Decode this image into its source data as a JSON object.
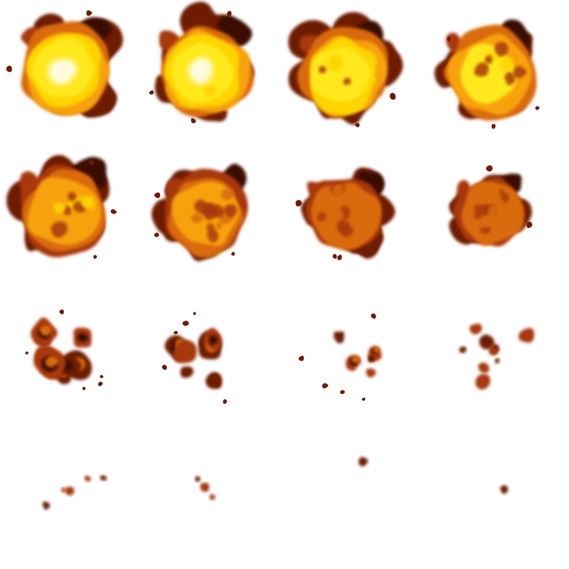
{
  "sprite_sheet": {
    "name": "explosion",
    "columns": 4,
    "rows": 4,
    "frame_count": 16,
    "background_color": "#ffffff",
    "palette": {
      "core_white": "#fffbe0",
      "core_yellow": "#ffe81a",
      "yellow": "#ffd400",
      "orange": "#f7a20a",
      "dark_orange": "#d96a08",
      "red_brown": "#a8380a",
      "brown": "#6e1c06",
      "dark_brown": "#3a0a02"
    },
    "frames": [
      {
        "index": 1,
        "intensity": 1.0,
        "coverage": 1.0
      },
      {
        "index": 2,
        "intensity": 0.93,
        "coverage": 1.0
      },
      {
        "index": 3,
        "intensity": 0.8,
        "coverage": 0.98
      },
      {
        "index": 4,
        "intensity": 0.7,
        "coverage": 0.95
      },
      {
        "index": 5,
        "intensity": 0.58,
        "coverage": 0.95
      },
      {
        "index": 6,
        "intensity": 0.47,
        "coverage": 0.88
      },
      {
        "index": 7,
        "intensity": 0.37,
        "coverage": 0.82
      },
      {
        "index": 8,
        "intensity": 0.27,
        "coverage": 0.74
      },
      {
        "index": 9,
        "intensity": 0.18,
        "coverage": 0.6
      },
      {
        "index": 10,
        "intensity": 0.12,
        "coverage": 0.48
      },
      {
        "index": 11,
        "intensity": 0.08,
        "coverage": 0.33
      },
      {
        "index": 12,
        "intensity": 0.05,
        "coverage": 0.2
      },
      {
        "index": 13,
        "intensity": 0.03,
        "coverage": 0.1
      },
      {
        "index": 14,
        "intensity": 0.02,
        "coverage": 0.05
      },
      {
        "index": 15,
        "intensity": 0.01,
        "coverage": 0.03
      },
      {
        "index": 16,
        "intensity": 0.0,
        "coverage": 0.02
      }
    ]
  }
}
